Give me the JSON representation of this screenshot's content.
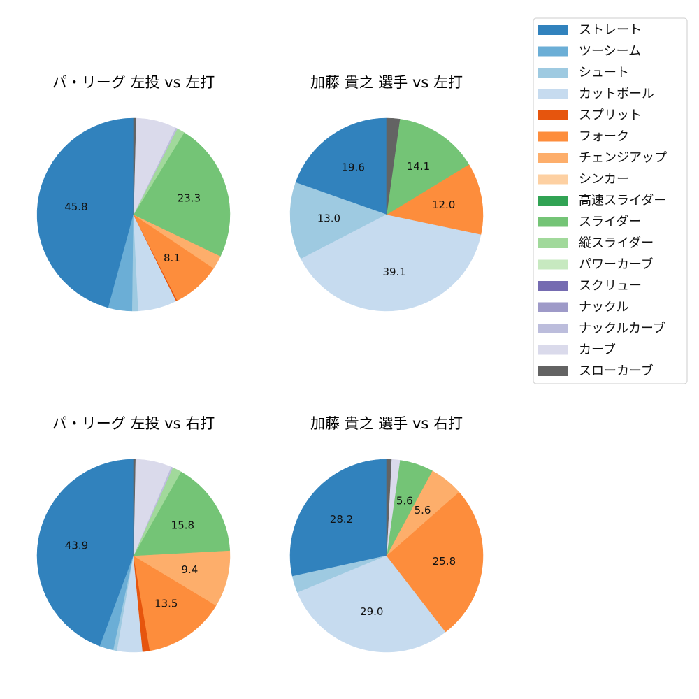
{
  "legend": {
    "items": [
      {
        "label": "ストレート",
        "color": "#3182bd"
      },
      {
        "label": "ツーシーム",
        "color": "#6baed6"
      },
      {
        "label": "シュート",
        "color": "#9ecae1"
      },
      {
        "label": "カットボール",
        "color": "#c6dbef"
      },
      {
        "label": "スプリット",
        "color": "#e6550d"
      },
      {
        "label": "フォーク",
        "color": "#fd8d3c"
      },
      {
        "label": "チェンジアップ",
        "color": "#fdae6b"
      },
      {
        "label": "シンカー",
        "color": "#fdd0a2"
      },
      {
        "label": "高速スライダー",
        "color": "#31a354"
      },
      {
        "label": "スライダー",
        "color": "#74c476"
      },
      {
        "label": "縦スライダー",
        "color": "#a1d99b"
      },
      {
        "label": "パワーカーブ",
        "color": "#c7e9c0"
      },
      {
        "label": "スクリュー",
        "color": "#756bb1"
      },
      {
        "label": "ナックル",
        "color": "#9e9ac8"
      },
      {
        "label": "ナックルカーブ",
        "color": "#bcbddc"
      },
      {
        "label": "カーブ",
        "color": "#dadaeb"
      },
      {
        "label": "スローカーブ",
        "color": "#636363"
      }
    ]
  },
  "chart_data": [
    {
      "type": "pie",
      "title": "パ・リーグ 左投 vs 左打",
      "slices": [
        {
          "category": "ストレート",
          "value": 45.8,
          "label": "45.8"
        },
        {
          "category": "ツーシーム",
          "value": 4.0
        },
        {
          "category": "シュート",
          "value": 1.0
        },
        {
          "category": "カットボール",
          "value": 6.5
        },
        {
          "category": "スプリット",
          "value": 0.2
        },
        {
          "category": "フォーク",
          "value": 8.1,
          "label": "8.1"
        },
        {
          "category": "チェンジアップ",
          "value": 2.3
        },
        {
          "category": "スライダー",
          "value": 23.3,
          "label": "23.3"
        },
        {
          "category": "縦スライダー",
          "value": 1.3
        },
        {
          "category": "ナックルカーブ",
          "value": 0.3
        },
        {
          "category": "カーブ",
          "value": 6.8
        },
        {
          "category": "スローカーブ",
          "value": 0.4
        }
      ]
    },
    {
      "type": "pie",
      "title": "加藤 貴之 選手 vs 左打",
      "slices": [
        {
          "category": "ストレート",
          "value": 19.6,
          "label": "19.6"
        },
        {
          "category": "シュート",
          "value": 13.0,
          "label": "13.0"
        },
        {
          "category": "カットボール",
          "value": 39.1,
          "label": "39.1"
        },
        {
          "category": "フォーク",
          "value": 12.0,
          "label": "12.0"
        },
        {
          "category": "スライダー",
          "value": 14.1,
          "label": "14.1"
        },
        {
          "category": "スローカーブ",
          "value": 2.2
        }
      ]
    },
    {
      "type": "pie",
      "title": "パ・リーグ 左投 vs 右打",
      "slices": [
        {
          "category": "ストレート",
          "value": 43.9,
          "label": "43.9"
        },
        {
          "category": "ツーシーム",
          "value": 2.3
        },
        {
          "category": "シュート",
          "value": 0.6
        },
        {
          "category": "カットボール",
          "value": 4.2
        },
        {
          "category": "スプリット",
          "value": 1.2
        },
        {
          "category": "フォーク",
          "value": 13.5,
          "label": "13.5"
        },
        {
          "category": "チェンジアップ",
          "value": 9.4,
          "label": "9.4"
        },
        {
          "category": "スライダー",
          "value": 15.8,
          "label": "15.8"
        },
        {
          "category": "縦スライダー",
          "value": 1.5
        },
        {
          "category": "ナックルカーブ",
          "value": 0.3
        },
        {
          "category": "カーブ",
          "value": 6.0
        },
        {
          "category": "スローカーブ",
          "value": 0.3
        }
      ]
    },
    {
      "type": "pie",
      "title": "加藤 貴之 選手 vs 右打",
      "slices": [
        {
          "category": "ストレート",
          "value": 28.2,
          "label": "28.2"
        },
        {
          "category": "シュート",
          "value": 2.8
        },
        {
          "category": "カットボール",
          "value": 29.0,
          "label": "29.0"
        },
        {
          "category": "フォーク",
          "value": 25.8,
          "label": "25.8"
        },
        {
          "category": "チェンジアップ",
          "value": 5.6,
          "label": "5.6"
        },
        {
          "category": "スライダー",
          "value": 5.6,
          "label": "5.6"
        },
        {
          "category": "カーブ",
          "value": 1.4
        },
        {
          "category": "スローカーブ",
          "value": 0.8
        }
      ]
    }
  ]
}
